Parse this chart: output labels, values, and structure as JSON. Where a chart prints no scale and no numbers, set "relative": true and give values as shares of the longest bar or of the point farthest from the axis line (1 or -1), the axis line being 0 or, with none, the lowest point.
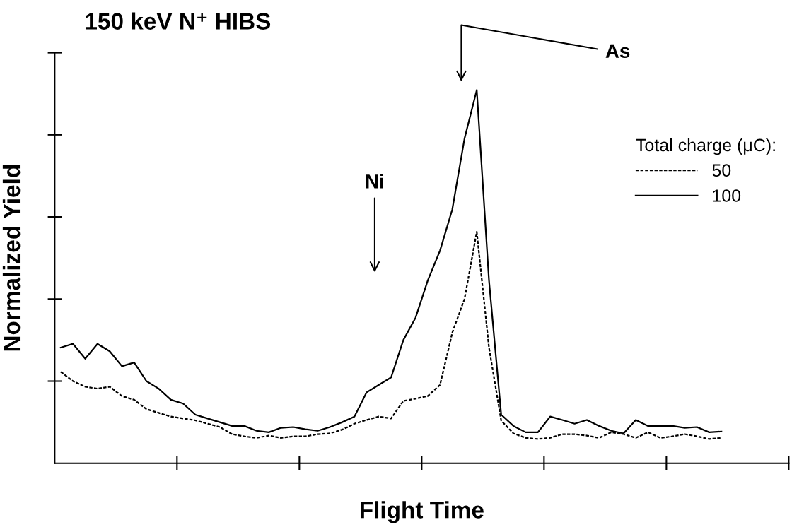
{
  "chart_data": {
    "type": "line",
    "relative": true,
    "title": "150 keV N⁺ HIBS",
    "xlabel": "Flight Time",
    "ylabel": "Normalized Yield",
    "legend_title": "Total charge (μC):",
    "legend": "top right",
    "grid": false,
    "marker": "none",
    "categories": [
      null,
      null,
      null,
      null,
      null,
      null,
      null,
      null,
      null,
      null,
      null,
      null,
      null,
      null,
      null,
      null,
      null,
      null,
      null,
      null,
      null,
      null,
      null,
      null,
      null,
      null,
      null,
      null,
      null,
      null,
      null,
      null,
      null,
      null,
      null,
      null,
      null,
      null,
      null,
      null,
      null,
      null,
      null,
      null,
      null,
      null,
      null,
      null,
      null,
      null,
      null,
      null,
      null,
      null,
      null,
      null,
      null,
      null,
      null,
      null
    ],
    "series": [
      {
        "name": "50",
        "color": "#000000",
        "line_style": "dashed",
        "values": [
          0.245,
          0.22,
          0.205,
          0.2,
          0.205,
          0.18,
          0.17,
          0.145,
          0.135,
          0.125,
          0.12,
          0.115,
          0.106,
          0.097,
          0.078,
          0.072,
          0.068,
          0.074,
          0.068,
          0.072,
          0.072,
          0.078,
          0.08,
          0.09,
          0.106,
          0.116,
          0.125,
          0.12,
          0.167,
          0.173,
          0.18,
          0.21,
          0.35,
          0.44,
          0.62,
          0.31,
          0.114,
          0.08,
          0.068,
          0.065,
          0.068,
          0.078,
          0.078,
          0.074,
          0.068,
          0.083,
          0.078,
          0.068,
          0.083,
          0.068,
          0.072,
          0.078,
          0.072,
          0.065,
          0.068,
          null,
          null,
          null,
          null,
          null
        ]
      },
      {
        "name": "100",
        "color": "#000000",
        "line_style": "solid",
        "values": [
          0.31,
          0.32,
          0.28,
          0.32,
          0.3,
          0.26,
          0.27,
          0.22,
          0.2,
          0.17,
          0.16,
          0.13,
          0.12,
          0.11,
          0.1,
          0.1,
          0.087,
          0.083,
          0.095,
          0.097,
          0.091,
          0.087,
          0.097,
          0.11,
          0.125,
          0.19,
          0.21,
          0.23,
          0.33,
          0.39,
          0.49,
          0.57,
          0.68,
          0.87,
          1,
          0.49,
          0.13,
          0.1,
          0.083,
          0.083,
          0.125,
          0.116,
          0.106,
          0.116,
          0.1,
          0.087,
          0.08,
          0.116,
          0.1,
          0.1,
          0.1,
          0.095,
          0.097,
          0.083,
          0.085,
          null,
          null,
          null,
          null,
          null
        ]
      }
    ],
    "annotations": [
      "Ni",
      "As"
    ]
  }
}
